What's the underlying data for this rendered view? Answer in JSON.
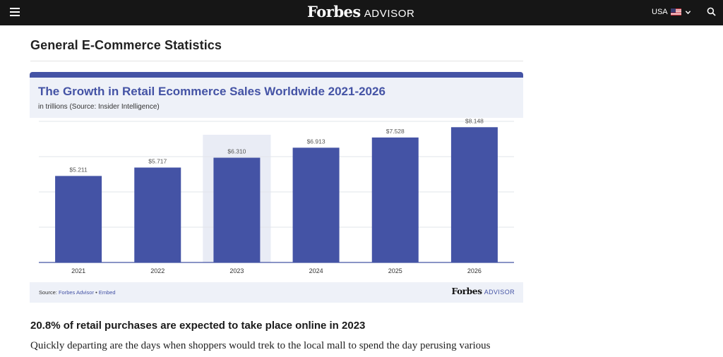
{
  "header": {
    "brand_name": "Forbes",
    "brand_suffix": "ADVISOR",
    "region_label": "USA",
    "menu_icon": "hamburger-menu-icon",
    "flag_icon": "us-flag-icon",
    "chevron_icon": "chevron-down-icon",
    "search_icon": "search-icon"
  },
  "article": {
    "section_title": "General E-Commerce Statistics",
    "stat_heading": "20.8% of retail purchases are expected to take place online in 2023",
    "body_text": "Quickly departing are the days when shoppers would trek to the local mall to spend the day perusing various"
  },
  "chart_card": {
    "footer_prefix": "Source:",
    "footer_source_link": "Forbes Advisor",
    "footer_separator": "•",
    "footer_embed_link": "Embed",
    "footer_logo_name": "Forbes",
    "footer_logo_suffix": "ADVISOR"
  },
  "chart_data": {
    "type": "bar",
    "title": "The Growth in Retail Ecommerce Sales Worldwide 2021-2026",
    "subtitle": "in trillions (Source: Insider Intelligence)",
    "categories": [
      "2021",
      "2022",
      "2023",
      "2024",
      "2025",
      "2026"
    ],
    "values": [
      5.211,
      5.717,
      6.31,
      6.913,
      7.528,
      8.148
    ],
    "value_labels": [
      "$5.211",
      "$5.717",
      "$6.310",
      "$6.913",
      "$7.528",
      "$8.148"
    ],
    "highlighted_category": "2023",
    "ylim": [
      0,
      8.5
    ],
    "grid": true,
    "colors": {
      "bar": "#4453a5",
      "highlight_band": "#e9ecf5",
      "accent": "#4453a5"
    }
  }
}
